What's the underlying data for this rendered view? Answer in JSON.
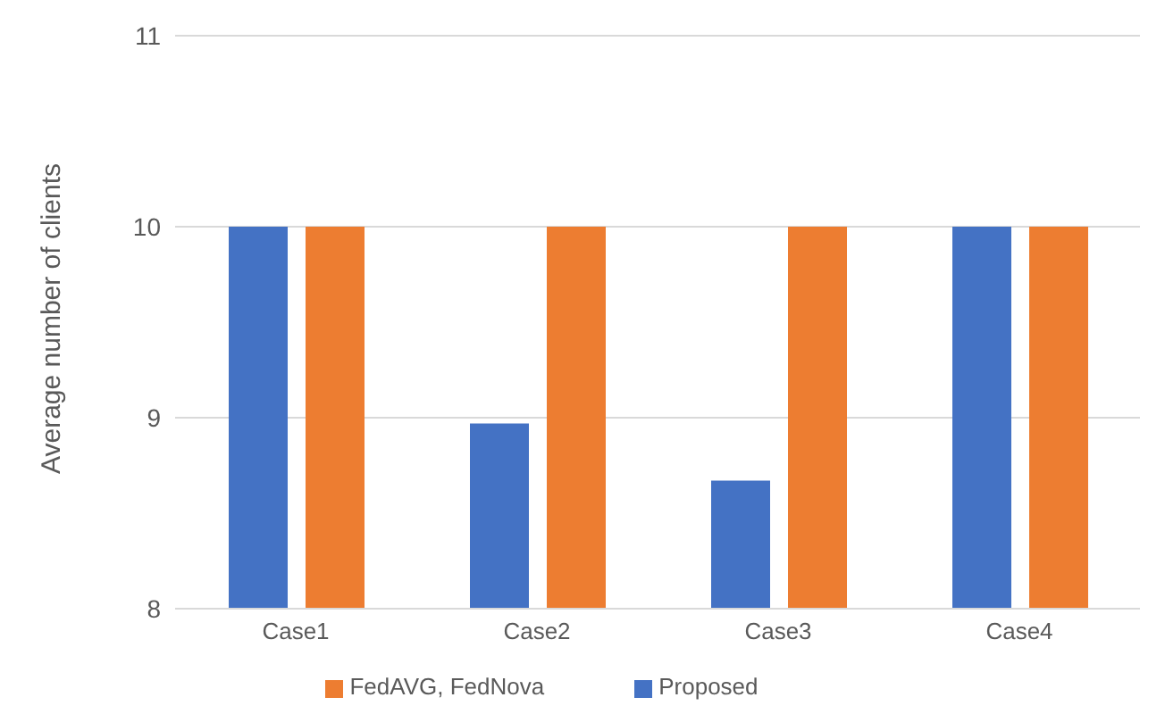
{
  "chart_data": {
    "type": "bar",
    "ylabel": "Average number of clients",
    "categories": [
      "Case1",
      "Case2",
      "Case3",
      "Case4"
    ],
    "series": [
      {
        "name": "Proposed",
        "color": "#4472c4",
        "values": [
          10,
          8.97,
          8.67,
          10
        ]
      },
      {
        "name": "FedAVG, FedNova",
        "color": "#ed7d31",
        "values": [
          10,
          10,
          10,
          10
        ]
      }
    ],
    "ylim": [
      8,
      11
    ],
    "yticks": [
      8,
      9,
      10,
      11
    ],
    "grid": "y",
    "legend": "bottom"
  }
}
